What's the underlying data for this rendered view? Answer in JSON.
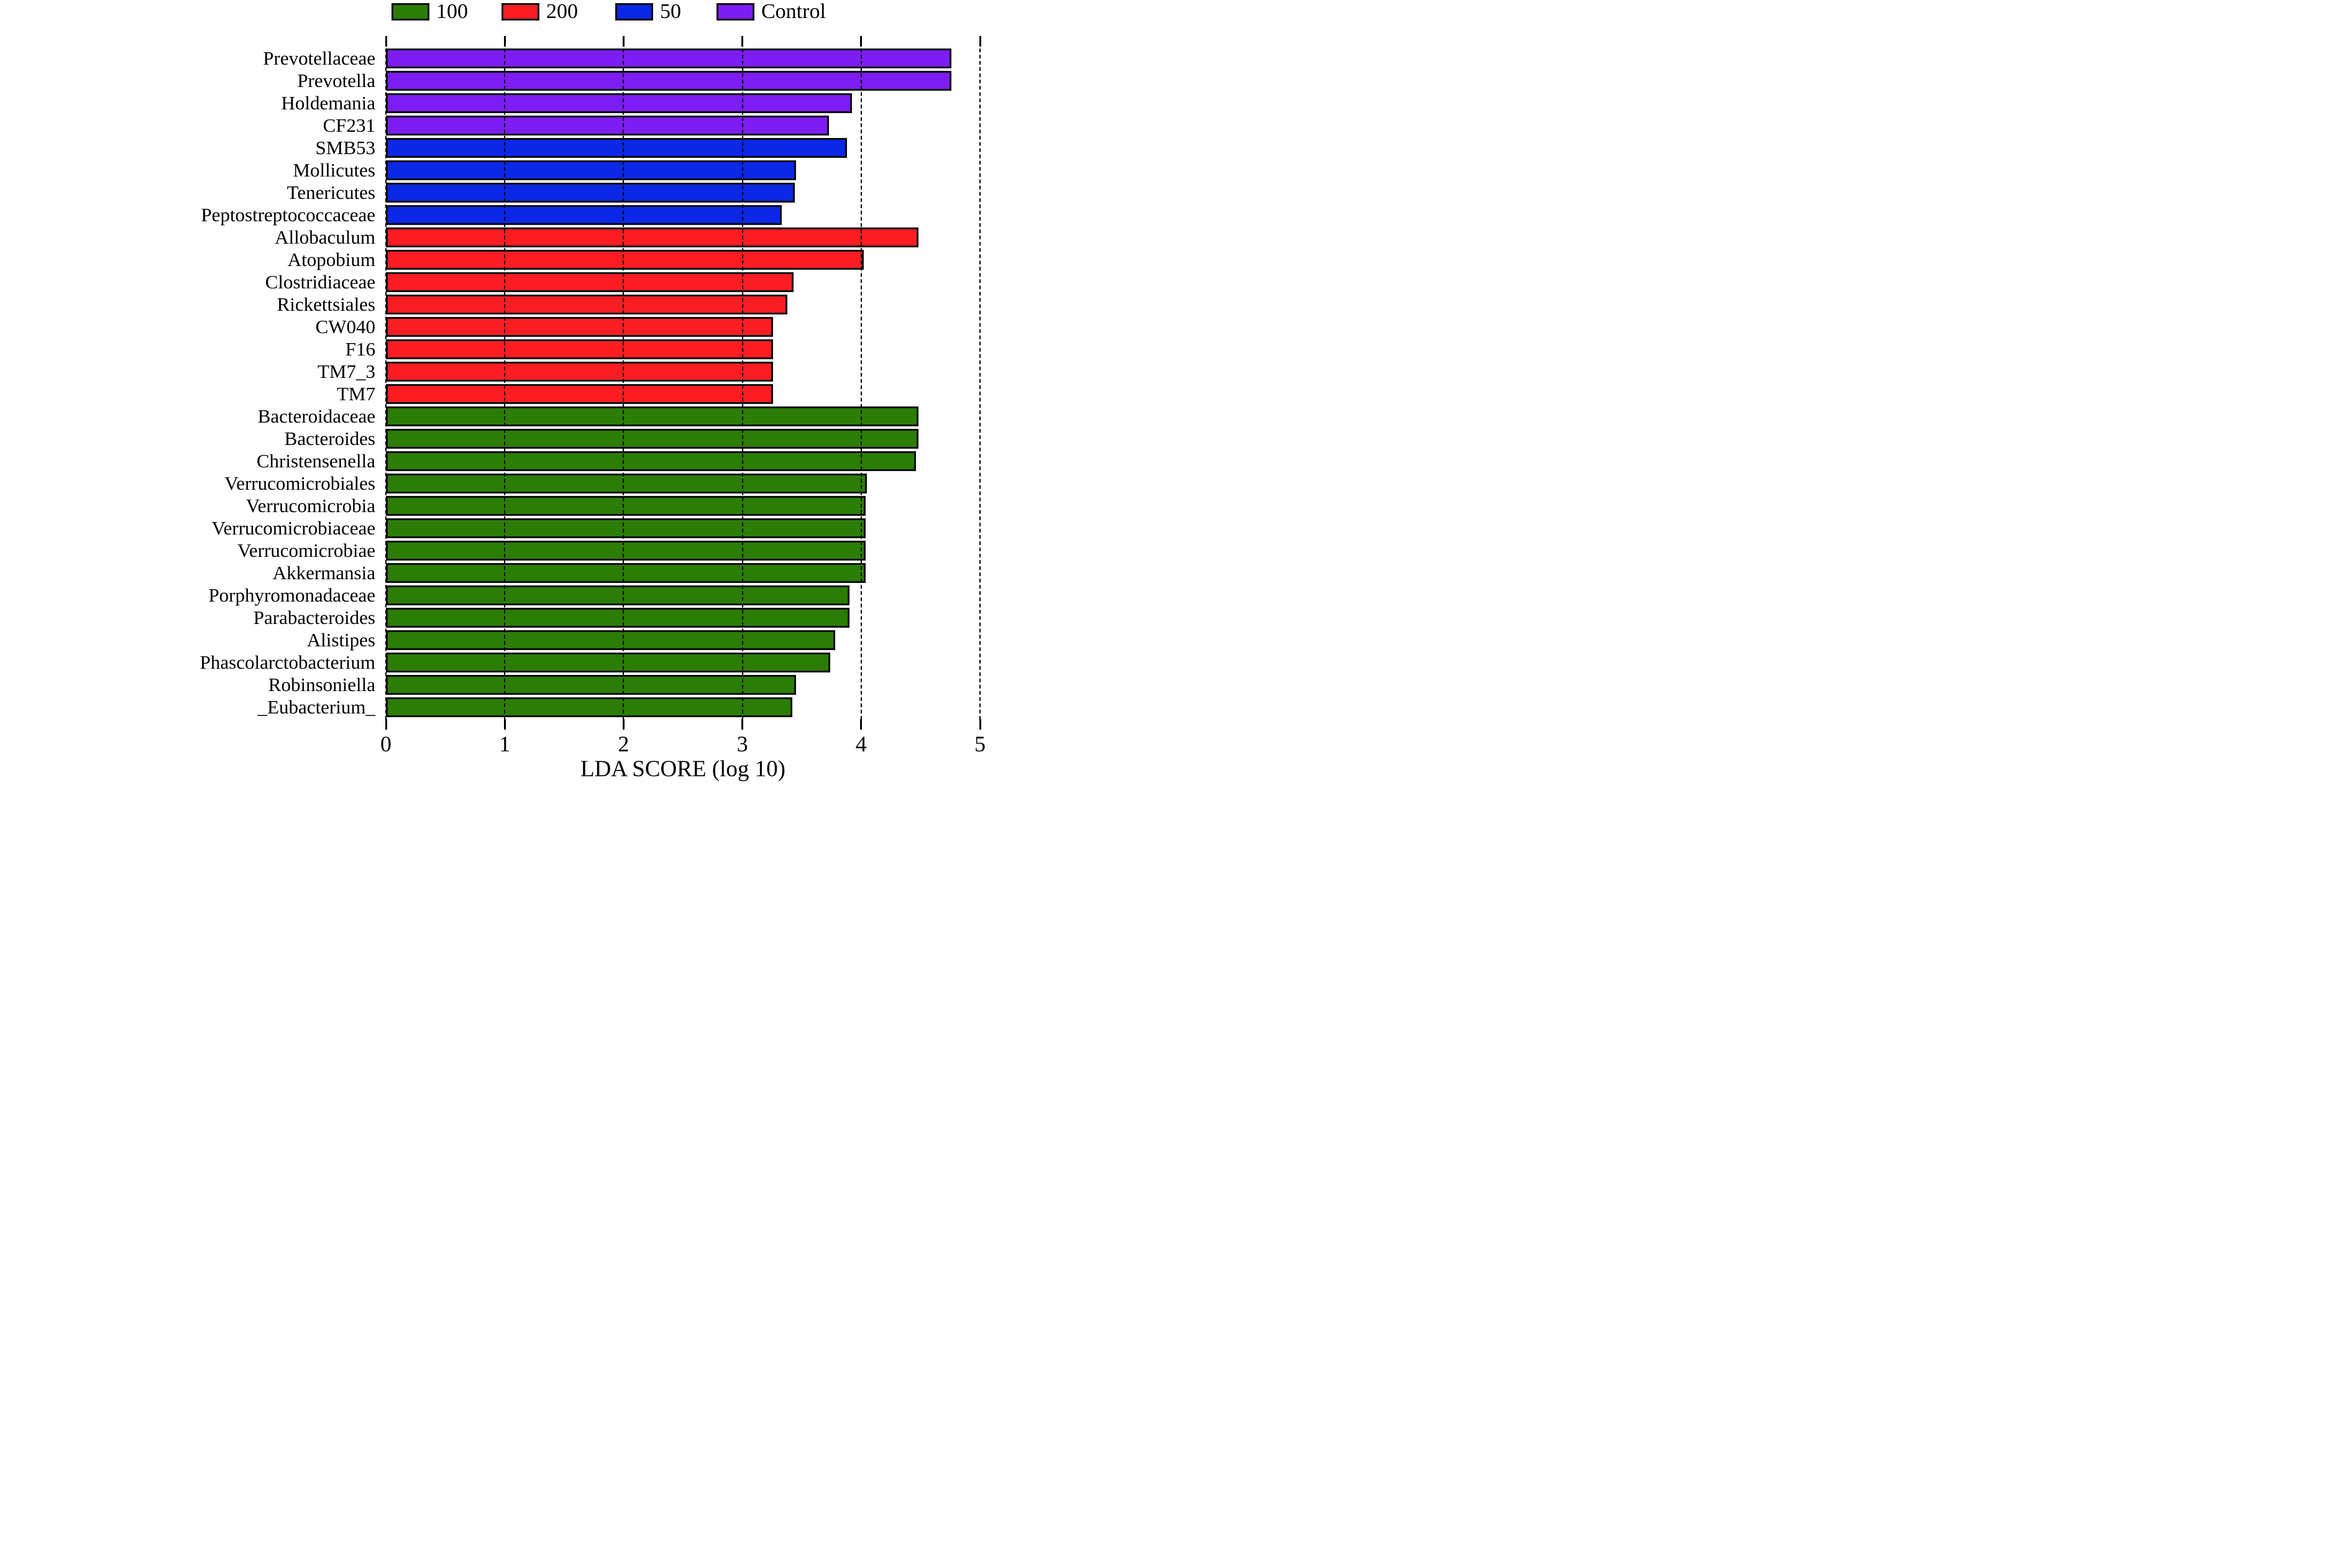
{
  "figure": {
    "background": "#ffffff",
    "bar_edge_color": "#0d0d0d"
  },
  "chart_data": {
    "type": "bar",
    "orientation": "horizontal",
    "title": "",
    "xlabel": "LDA SCORE (log 10)",
    "ylabel": "",
    "xlim": [
      0,
      5
    ],
    "xticks": [
      0,
      1,
      2,
      3,
      4,
      5
    ],
    "grid": "vertical-dashed",
    "legend_position": "top-center",
    "groups": [
      {
        "name": "100",
        "color": "#2B7D06"
      },
      {
        "name": "200",
        "color": "#FB1D22"
      },
      {
        "name": "50",
        "color": "#0A28E6"
      },
      {
        "name": "Control",
        "color": "#7C1DF5"
      }
    ],
    "bars": [
      {
        "category": "Prevotellaceae",
        "group": "Control",
        "value": 4.76
      },
      {
        "category": "Prevotella",
        "group": "Control",
        "value": 4.76
      },
      {
        "category": "Holdemania",
        "group": "Control",
        "value": 3.92
      },
      {
        "category": "CF231",
        "group": "Control",
        "value": 3.73
      },
      {
        "category": "SMB53",
        "group": "50",
        "value": 3.88
      },
      {
        "category": "Mollicutes",
        "group": "50",
        "value": 3.45
      },
      {
        "category": "Tenericutes",
        "group": "50",
        "value": 3.44
      },
      {
        "category": "Peptostreptococcaceae",
        "group": "50",
        "value": 3.33
      },
      {
        "category": "Allobaculum",
        "group": "200",
        "value": 4.48
      },
      {
        "category": "Atopobium",
        "group": "200",
        "value": 4.02
      },
      {
        "category": "Clostridiaceae",
        "group": "200",
        "value": 3.43
      },
      {
        "category": "Rickettsiales",
        "group": "200",
        "value": 3.38
      },
      {
        "category": "CW040",
        "group": "200",
        "value": 3.26
      },
      {
        "category": "F16",
        "group": "200",
        "value": 3.26
      },
      {
        "category": "TM7_3",
        "group": "200",
        "value": 3.26
      },
      {
        "category": "TM7",
        "group": "200",
        "value": 3.26
      },
      {
        "category": "Bacteroidaceae",
        "group": "100",
        "value": 4.48
      },
      {
        "category": "Bacteroides",
        "group": "100",
        "value": 4.48
      },
      {
        "category": "Christensenella",
        "group": "100",
        "value": 4.46
      },
      {
        "category": "Verrucomicrobiales",
        "group": "100",
        "value": 4.05
      },
      {
        "category": "Verrucomicrobia",
        "group": "100",
        "value": 4.04
      },
      {
        "category": "Verrucomicrobiaceae",
        "group": "100",
        "value": 4.04
      },
      {
        "category": "Verrucomicrobiae",
        "group": "100",
        "value": 4.04
      },
      {
        "category": "Akkermansia",
        "group": "100",
        "value": 4.04
      },
      {
        "category": "Porphyromonadaceae",
        "group": "100",
        "value": 3.9
      },
      {
        "category": "Parabacteroides",
        "group": "100",
        "value": 3.9
      },
      {
        "category": "Alistipes",
        "group": "100",
        "value": 3.78
      },
      {
        "category": "Phascolarctobacterium",
        "group": "100",
        "value": 3.74
      },
      {
        "category": "Robinsoniella",
        "group": "100",
        "value": 3.45
      },
      {
        "category": "_Eubacterium_",
        "group": "100",
        "value": 3.42
      }
    ]
  }
}
